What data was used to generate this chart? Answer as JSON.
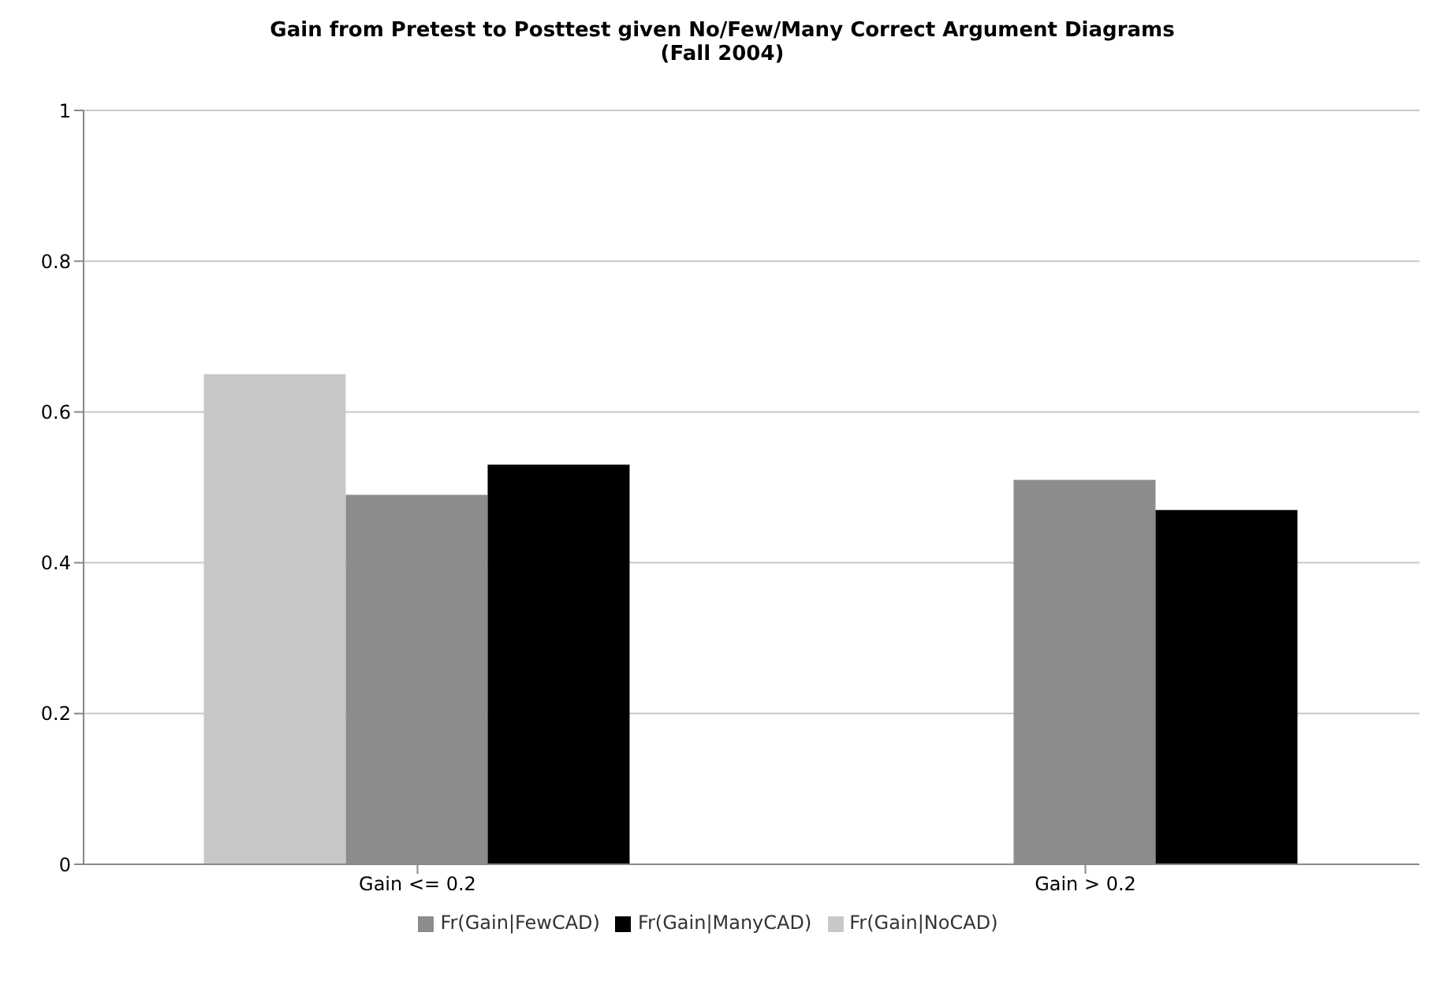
{
  "chart_data": {
    "type": "bar",
    "title": "Gain from Pretest to Posttest given No/Few/Many Correct Argument Diagrams",
    "subtitle": "(Fall 2004)",
    "categories": [
      "Gain <= 0.2",
      "Gain > 0.2"
    ],
    "series": [
      {
        "name": "Fr(Gain|NoCAD)",
        "color": "#c8c8c8",
        "values": [
          0.65,
          null
        ]
      },
      {
        "name": "Fr(Gain|FewCAD)",
        "color": "#8c8c8c",
        "values": [
          0.49,
          0.51
        ]
      },
      {
        "name": "Fr(Gain|ManyCAD)",
        "color": "#000000",
        "values": [
          0.53,
          0.47
        ]
      }
    ],
    "ylim": [
      0,
      1
    ],
    "yticks": [
      0,
      0.2,
      0.4,
      0.6,
      0.8,
      1
    ],
    "grid": "y",
    "legend": "bottom"
  }
}
